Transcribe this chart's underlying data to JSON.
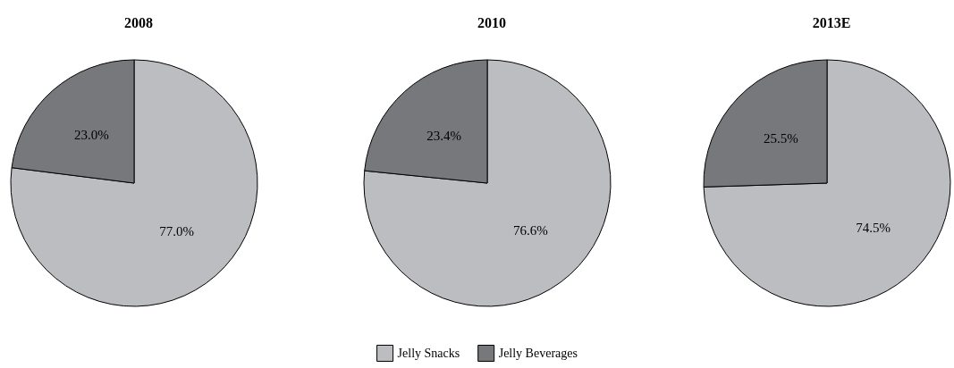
{
  "chart_data": {
    "type": "pie",
    "categories": [
      "Jelly Snacks",
      "Jelly Beverages"
    ],
    "colors": [
      "#bcbdc1",
      "#77787b"
    ],
    "legend": "bottom",
    "series": [
      {
        "name": "2008",
        "values": [
          77.0,
          23.0
        ],
        "value_labels": [
          "77.0%",
          "23.0%"
        ]
      },
      {
        "name": "2010",
        "values": [
          76.6,
          23.4
        ],
        "value_labels": [
          "76.6%",
          "23.4%"
        ]
      },
      {
        "name": "2013E",
        "values": [
          74.5,
          25.5
        ],
        "value_labels": [
          "74.5%",
          "25.5%"
        ]
      }
    ]
  }
}
